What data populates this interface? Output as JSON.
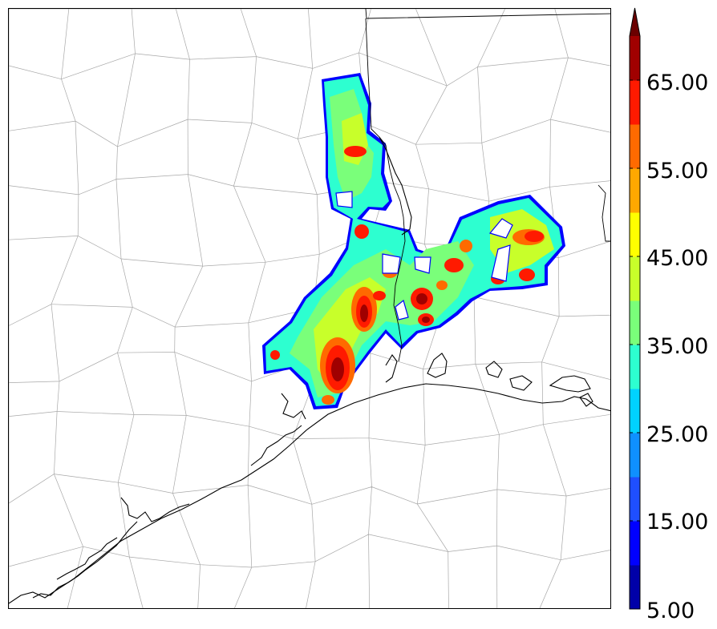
{
  "colorbar": {
    "tick_labels": [
      "5.00",
      "15.00",
      "25.00",
      "35.00",
      "45.00",
      "55.00",
      "65.00"
    ],
    "min": 5,
    "max": 70,
    "step": 5,
    "extend": "max",
    "colors": [
      "#0000a8",
      "#0000ff",
      "#1f4fff",
      "#0f90ff",
      "#00d2ff",
      "#2dffd0",
      "#7aff7a",
      "#c8ff2a",
      "#ffff00",
      "#ffa800",
      "#ff6a00",
      "#ff1a00",
      "#a00000",
      "#6b0000"
    ]
  }
}
